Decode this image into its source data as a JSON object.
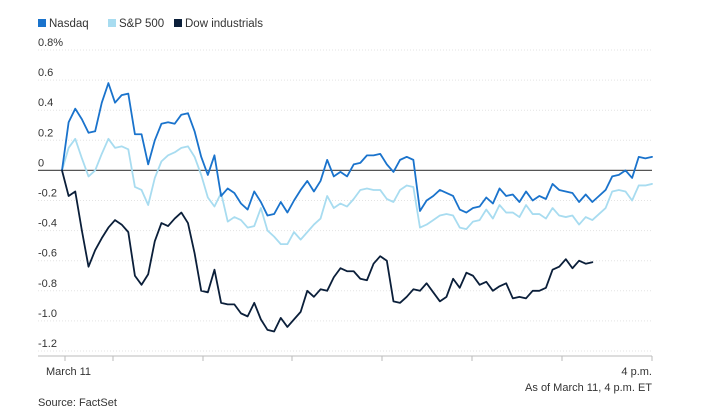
{
  "chart_data": {
    "type": "line",
    "title": "",
    "xlabel": "",
    "ylabel": "",
    "ylim": [
      -1.2,
      0.8
    ],
    "yticks": [
      0.8,
      0.6,
      0.4,
      0.2,
      0,
      -0.2,
      -0.4,
      -0.6,
      -0.8,
      -1.0,
      -1.2
    ],
    "ytick_labels": [
      "0.8%",
      "0.6",
      "0.4",
      "0.2",
      "0",
      "-0.2",
      "-0.4",
      "-0.6",
      "-0.8",
      "-1.0",
      "-1.2"
    ],
    "x_start_label": "March 11",
    "x_end_label": "4 p.m.",
    "as_of_note": "As of March 11, 4 p.m. ET",
    "source_note": "Source: FactSet",
    "grid": true,
    "legend_position": "top-left",
    "series": [
      {
        "name": "Nasdaq",
        "color": "#1a73cc",
        "values": [
          0.0,
          0.32,
          0.41,
          0.34,
          0.25,
          0.26,
          0.45,
          0.58,
          0.45,
          0.5,
          0.51,
          0.24,
          0.24,
          0.04,
          0.2,
          0.31,
          0.32,
          0.31,
          0.37,
          0.38,
          0.26,
          0.09,
          -0.03,
          0.1,
          -0.17,
          -0.12,
          -0.15,
          -0.22,
          -0.26,
          -0.14,
          -0.21,
          -0.3,
          -0.29,
          -0.21,
          -0.28,
          -0.2,
          -0.13,
          -0.07,
          -0.14,
          -0.07,
          0.07,
          -0.04,
          -0.01,
          -0.04,
          0.04,
          0.05,
          0.1,
          0.1,
          0.11,
          0.04,
          -0.01,
          0.07,
          0.09,
          0.07,
          -0.27,
          -0.2,
          -0.17,
          -0.13,
          -0.15,
          -0.17,
          -0.26,
          -0.28,
          -0.25,
          -0.24,
          -0.18,
          -0.22,
          -0.12,
          -0.17,
          -0.16,
          -0.21,
          -0.14,
          -0.2,
          -0.17,
          -0.19,
          -0.09,
          -0.13,
          -0.14,
          -0.15,
          -0.21,
          -0.16,
          -0.21,
          -0.17,
          -0.13,
          -0.04,
          -0.03,
          0.0,
          -0.05,
          0.09,
          0.08,
          0.09
        ]
      },
      {
        "name": "S&P 500",
        "color": "#a8dcf0",
        "values": [
          0.0,
          0.15,
          0.21,
          0.08,
          -0.04,
          0.0,
          0.11,
          0.21,
          0.15,
          0.16,
          0.14,
          -0.11,
          -0.13,
          -0.23,
          -0.05,
          0.06,
          0.1,
          0.12,
          0.15,
          0.16,
          0.09,
          -0.03,
          -0.18,
          -0.24,
          -0.15,
          -0.34,
          -0.31,
          -0.33,
          -0.38,
          -0.37,
          -0.25,
          -0.4,
          -0.44,
          -0.49,
          -0.49,
          -0.41,
          -0.46,
          -0.41,
          -0.36,
          -0.32,
          -0.17,
          -0.25,
          -0.22,
          -0.24,
          -0.19,
          -0.13,
          -0.12,
          -0.13,
          -0.13,
          -0.19,
          -0.21,
          -0.13,
          -0.1,
          -0.11,
          -0.38,
          -0.36,
          -0.33,
          -0.3,
          -0.29,
          -0.3,
          -0.38,
          -0.39,
          -0.34,
          -0.33,
          -0.26,
          -0.32,
          -0.23,
          -0.28,
          -0.28,
          -0.31,
          -0.23,
          -0.29,
          -0.29,
          -0.32,
          -0.25,
          -0.3,
          -0.31,
          -0.3,
          -0.36,
          -0.31,
          -0.33,
          -0.29,
          -0.25,
          -0.14,
          -0.13,
          -0.14,
          -0.2,
          -0.1,
          -0.1,
          -0.09
        ]
      },
      {
        "name": "Dow industrials",
        "color": "#0b1f3a",
        "values": [
          0.0,
          -0.17,
          -0.14,
          -0.4,
          -0.64,
          -0.53,
          -0.45,
          -0.38,
          -0.33,
          -0.36,
          -0.41,
          -0.7,
          -0.76,
          -0.69,
          -0.47,
          -0.35,
          -0.37,
          -0.32,
          -0.28,
          -0.35,
          -0.55,
          -0.8,
          -0.81,
          -0.66,
          -0.88,
          -0.89,
          -0.89,
          -0.95,
          -0.97,
          -0.88,
          -0.99,
          -1.06,
          -1.07,
          -0.98,
          -1.04,
          -0.99,
          -0.94,
          -0.8,
          -0.84,
          -0.79,
          -0.8,
          -0.71,
          -0.65,
          -0.67,
          -0.67,
          -0.72,
          -0.73,
          -0.62,
          -0.57,
          -0.6,
          -0.87,
          -0.88,
          -0.84,
          -0.79,
          -0.8,
          -0.75,
          -0.81,
          -0.87,
          -0.84,
          -0.72,
          -0.78,
          -0.68,
          -0.7,
          -0.76,
          -0.74,
          -0.8,
          -0.77,
          -0.75,
          -0.85,
          -0.84,
          -0.85,
          -0.8,
          -0.8,
          -0.78,
          -0.66,
          -0.64,
          -0.59,
          -0.65,
          -0.6,
          -0.62,
          -0.61
        ]
      }
    ]
  }
}
